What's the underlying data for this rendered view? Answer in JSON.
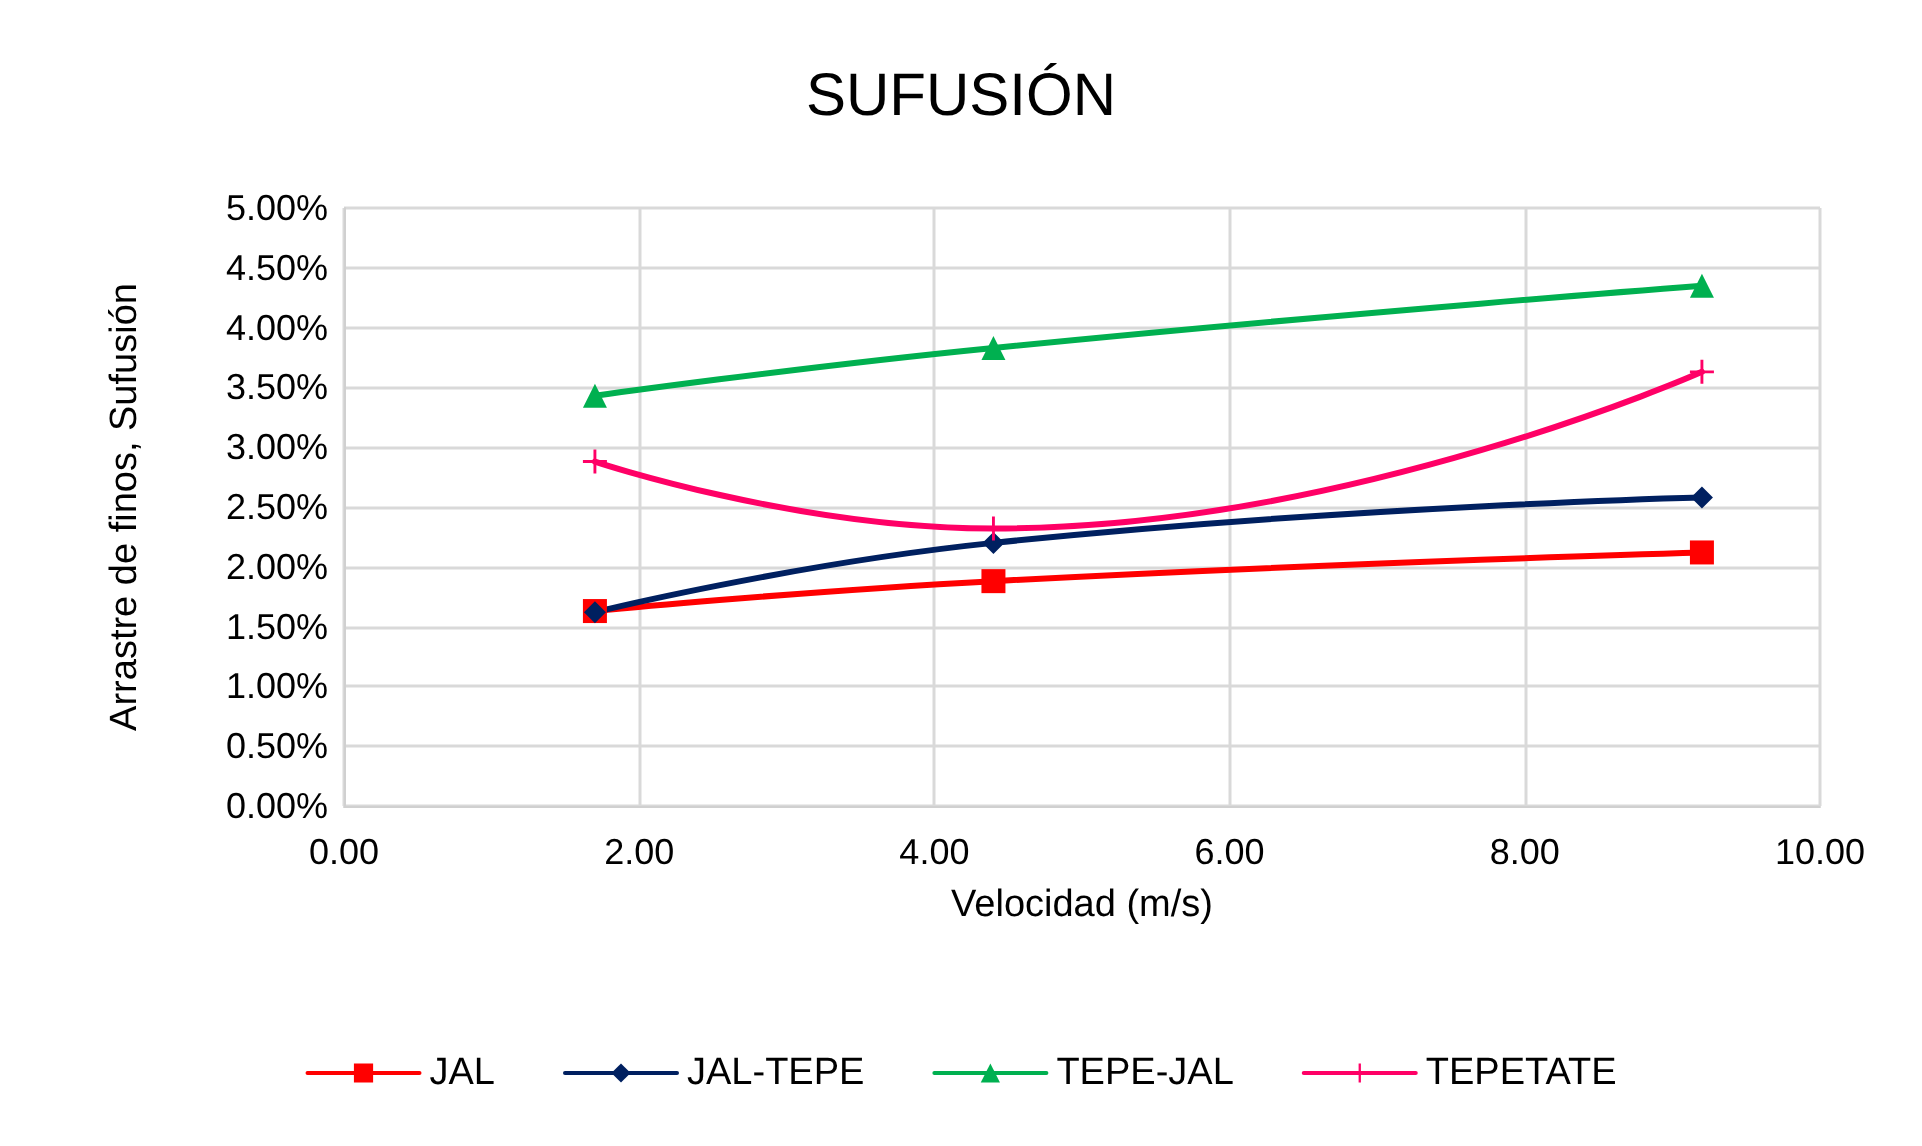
{
  "chart_data": {
    "type": "line",
    "title": "SUFUSIÓN",
    "xlabel": "Velocidad (m/s)",
    "ylabel": "Arrastre de finos, Sufusión",
    "xlim": [
      0,
      10
    ],
    "xticks": [
      {
        "value": 0,
        "label": "0.00"
      },
      {
        "value": 2,
        "label": "2.00"
      },
      {
        "value": 4,
        "label": "4.00"
      },
      {
        "value": 6,
        "label": "6.00"
      },
      {
        "value": 8,
        "label": "8.00"
      },
      {
        "value": 10,
        "label": "10.00"
      }
    ],
    "ylim": [
      0,
      5
    ],
    "yticks": [
      {
        "value": 0,
        "label": "0.00%"
      },
      {
        "value": 0.5,
        "label": "0.50%"
      },
      {
        "value": 1,
        "label": "1.00%"
      },
      {
        "value": 1.5,
        "label": "1.50%"
      },
      {
        "value": 2,
        "label": "2.00%"
      },
      {
        "value": 2.5,
        "label": "2.50%"
      },
      {
        "value": 3,
        "label": "3.00%"
      },
      {
        "value": 3.5,
        "label": "3.50%"
      },
      {
        "value": 4,
        "label": "4.00%"
      },
      {
        "value": 4.5,
        "label": "4.50%"
      },
      {
        "value": 5,
        "label": "5.00%"
      }
    ],
    "x": [
      1.7,
      4.4,
      9.2
    ],
    "series": [
      {
        "name": "JAL",
        "color": "#ff0000",
        "marker": "square",
        "values": [
          1.63,
          1.88,
          2.12
        ]
      },
      {
        "name": "JAL-TEPE",
        "color": "#002060",
        "marker": "diamond",
        "values": [
          1.62,
          2.2,
          2.58
        ]
      },
      {
        "name": "TEPE-JAL",
        "color": "#00b050",
        "marker": "triangle",
        "values": [
          3.43,
          3.83,
          4.35
        ]
      },
      {
        "name": "TEPETATE",
        "color": "#ff0066",
        "marker": "cross",
        "values": [
          2.88,
          2.32,
          3.63
        ]
      }
    ],
    "grid": true,
    "legend": "bottom",
    "line_style": "solid"
  }
}
